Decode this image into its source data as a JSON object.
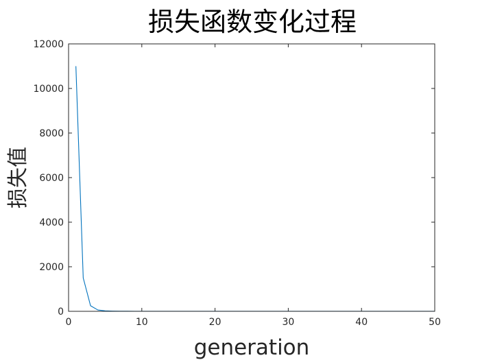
{
  "chart_data": {
    "type": "line",
    "title": "损失函数变化过程",
    "xlabel": "generation",
    "ylabel": "损失值",
    "xlim": [
      0,
      50
    ],
    "ylim": [
      0,
      12000
    ],
    "xticks": [
      0,
      10,
      20,
      30,
      40,
      50
    ],
    "yticks": [
      0,
      2000,
      4000,
      6000,
      8000,
      10000,
      12000
    ],
    "xtick_labels": [
      "0",
      "10",
      "20",
      "30",
      "40",
      "50"
    ],
    "ytick_labels": [
      "0",
      "2000",
      "4000",
      "6000",
      "8000",
      "10000",
      "12000"
    ],
    "grid": false,
    "box": true,
    "series": [
      {
        "color": "#0072BD",
        "x": [
          1,
          2,
          3,
          4,
          5,
          6,
          7,
          8,
          9,
          10,
          11,
          12,
          13,
          14,
          15,
          16,
          17,
          18,
          19,
          20,
          21,
          22,
          23,
          24,
          25,
          26,
          27,
          28,
          29,
          30,
          31,
          32,
          33,
          34,
          35,
          36,
          37,
          38,
          39,
          40,
          41,
          42,
          43,
          44,
          45,
          46,
          47,
          48,
          49,
          50
        ],
        "y": [
          11000,
          1500,
          250,
          60,
          20,
          10,
          6,
          5,
          4,
          4,
          3,
          3,
          3,
          3,
          3,
          3,
          3,
          3,
          3,
          3,
          3,
          3,
          3,
          3,
          3,
          3,
          3,
          3,
          3,
          3,
          3,
          3,
          3,
          3,
          3,
          3,
          3,
          3,
          3,
          3,
          3,
          3,
          3,
          3,
          3,
          3,
          3,
          3,
          3,
          3
        ]
      }
    ]
  }
}
